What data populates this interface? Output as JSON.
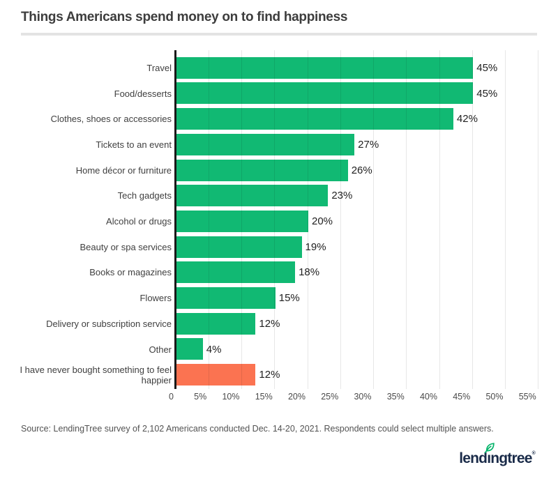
{
  "title": "Things Americans spend money on to find happiness",
  "source": "Source: LendingTree survey of 2,102 Americans conducted Dec. 14-20, 2021. Respondents could select multiple answers.",
  "logo": {
    "prefix": "lend",
    "dotless_i": "ı",
    "suffix": "ngtree",
    "registered": "®"
  },
  "colors": {
    "bar_green": "#11b973",
    "bar_orange": "#fb7351",
    "axis_line": "#191919",
    "gridline": "#e7e7e7",
    "logo_navy": "#1a2b49",
    "leaf_green": "#00b368"
  },
  "chart_data": {
    "type": "bar",
    "orientation": "horizontal",
    "title": "Things Americans spend money on to find happiness",
    "categories": [
      "Travel",
      "Food/desserts",
      "Clothes, shoes or accessories",
      "Tickets to an event",
      "Home décor or furniture",
      "Tech gadgets",
      "Alcohol or drugs",
      "Beauty or spa services",
      "Books or magazines",
      "Flowers",
      "Delivery or subscription service",
      "Other",
      "I have never bought something to feel\nhappier"
    ],
    "values": [
      45,
      45,
      42,
      27,
      26,
      23,
      20,
      19,
      18,
      15,
      12,
      4,
      12
    ],
    "value_labels": [
      "45%",
      "45%",
      "42%",
      "27%",
      "26%",
      "23%",
      "20%",
      "19%",
      "18%",
      "15%",
      "12%",
      "4%",
      "12%"
    ],
    "highlight_index": 12,
    "xlim": [
      0,
      55
    ],
    "x_ticks": [
      "0",
      "5%",
      "10%",
      "15%",
      "20%",
      "25%",
      "30%",
      "35%",
      "40%",
      "45%",
      "50%",
      "55%"
    ],
    "grid": true,
    "legend": false
  }
}
